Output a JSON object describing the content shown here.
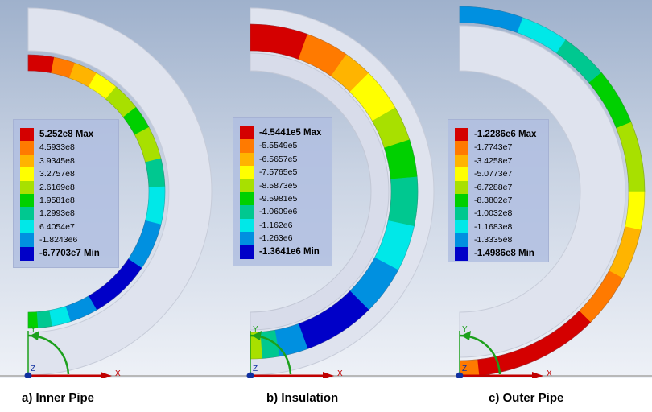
{
  "panels": [
    {
      "id": "inner-pipe",
      "caption": "a) Inner Pipe",
      "legend": {
        "labels": [
          "5.252e8 Max",
          "4.5933e8",
          "3.9345e8",
          "3.2757e8",
          "2.6169e8",
          "1.9581e8",
          "1.2993e8",
          "6.4054e7",
          "-1.8243e6",
          "-6.7703e7 Min"
        ],
        "colors": [
          "#d40000",
          "#ff7a00",
          "#ffb400",
          "#ffff00",
          "#a8e000",
          "#00d000",
          "#00c890",
          "#00e8e8",
          "#0090e0",
          "#0000c8"
        ]
      }
    },
    {
      "id": "insulation",
      "caption": "b) Insulation",
      "legend": {
        "labels": [
          "-4.5441e5 Max",
          "-5.5549e5",
          "-6.5657e5",
          "-7.5765e5",
          "-8.5873e5",
          "-9.5981e5",
          "-1.0609e6",
          "-1.162e6",
          "-1.263e6",
          "-1.3641e6 Min"
        ],
        "colors": [
          "#d40000",
          "#ff7a00",
          "#ffb400",
          "#ffff00",
          "#a8e000",
          "#00d000",
          "#00c890",
          "#00e8e8",
          "#0090e0",
          "#0000c8"
        ]
      }
    },
    {
      "id": "outer-pipe",
      "caption": "c) Outer Pipe",
      "legend": {
        "labels": [
          "-1.2286e6 Max",
          "-1.7743e7",
          "-3.4258e7",
          "-5.0773e7",
          "-6.7288e7",
          "-8.3802e7",
          "-1.0032e8",
          "-1.1683e8",
          "-1.3335e8",
          "-1.4986e8 Min"
        ],
        "colors": [
          "#d40000",
          "#ff7a00",
          "#ffb400",
          "#ffff00",
          "#a8e000",
          "#00d000",
          "#00c890",
          "#00e8e8",
          "#0090e0",
          "#0000c8"
        ]
      }
    }
  ],
  "axes": {
    "x_label": "X",
    "y_label": "Y",
    "z_label": "Z"
  }
}
